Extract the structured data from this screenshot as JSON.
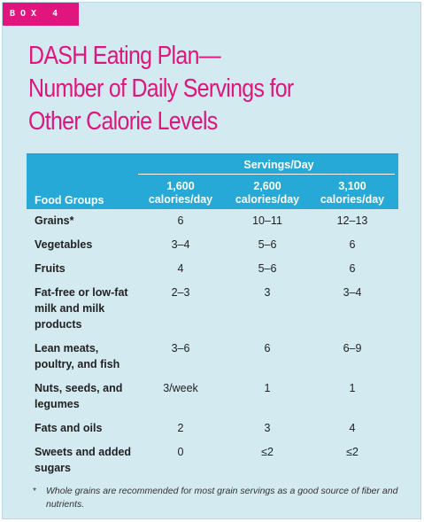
{
  "box_label": "BOX 4",
  "title_lines": [
    "DASH Eating Plan—",
    "Number of Daily Servings for",
    "Other Calorie Levels"
  ],
  "table": {
    "group_header": "Servings/Day",
    "food_groups_header": "Food Groups",
    "columns": [
      "1,600 calories/day",
      "2,600 calories/day",
      "3,100 calories/day"
    ],
    "columns_split": [
      [
        "1,600",
        "calories/day"
      ],
      [
        "2,600",
        "calories/day"
      ],
      [
        "3,100",
        "calories/day"
      ]
    ],
    "rows": [
      {
        "food": "Grains*",
        "values": [
          "6",
          "10–11",
          "12–13"
        ]
      },
      {
        "food": "Vegetables",
        "values": [
          "3–4",
          "5–6",
          "6"
        ]
      },
      {
        "food": "Fruits",
        "values": [
          "4",
          "5–6",
          "6"
        ]
      },
      {
        "food": "Fat-free or low-fat milk and milk products",
        "values": [
          "2–3",
          "3",
          "3–4"
        ]
      },
      {
        "food": "Lean meats, poultry, and fish",
        "values": [
          "3–6",
          "6",
          "6–9"
        ]
      },
      {
        "food": "Nuts, seeds, and legumes",
        "values": [
          "3/week",
          "1",
          "1"
        ]
      },
      {
        "food": "Fats and oils",
        "values": [
          "2",
          "3",
          "4"
        ]
      },
      {
        "food": "Sweets and added sugars",
        "values": [
          "0",
          "≤2",
          "≤2"
        ]
      }
    ]
  },
  "footnote": {
    "marker": "*",
    "text": "Whole grains are recommended for most grain servings as a good source of fiber and nutrients."
  },
  "colors": {
    "accent_magenta": "#e0157e",
    "header_blue": "#27a9d8",
    "panel_bg": "#d3eaf0"
  }
}
